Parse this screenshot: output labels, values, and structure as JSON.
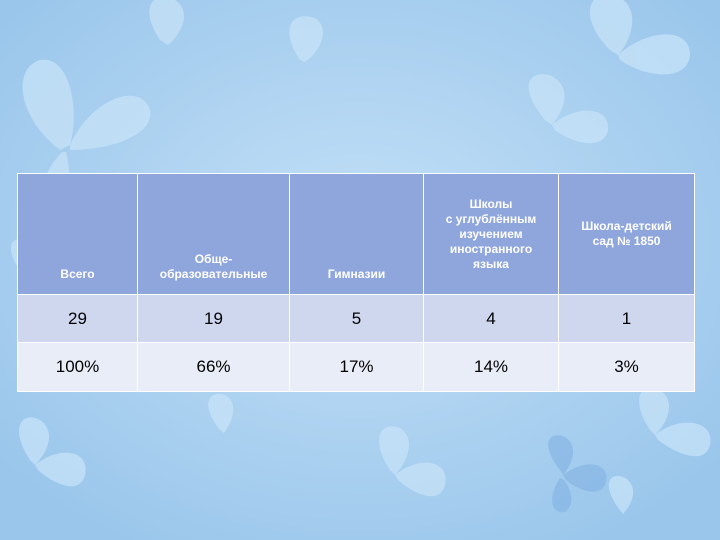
{
  "table": {
    "headers": [
      "Всего",
      "Обще-\nобразовательные",
      "Гимназии",
      "Школы\nс углублённым\nизучением\nиностранного\nязыка",
      "Школа-детский\nсад № 1850"
    ],
    "rows": [
      [
        "29",
        "19",
        "5",
        "4",
        "1"
      ],
      [
        "100%",
        "66%",
        "17%",
        "14%",
        "3%"
      ]
    ]
  },
  "colors": {
    "background": "#aad0ef",
    "header": "#8fa6dd",
    "row_1": "#cfd7ef",
    "row_2": "#e9edf7"
  },
  "decorations": [
    "butterfly-icon"
  ]
}
